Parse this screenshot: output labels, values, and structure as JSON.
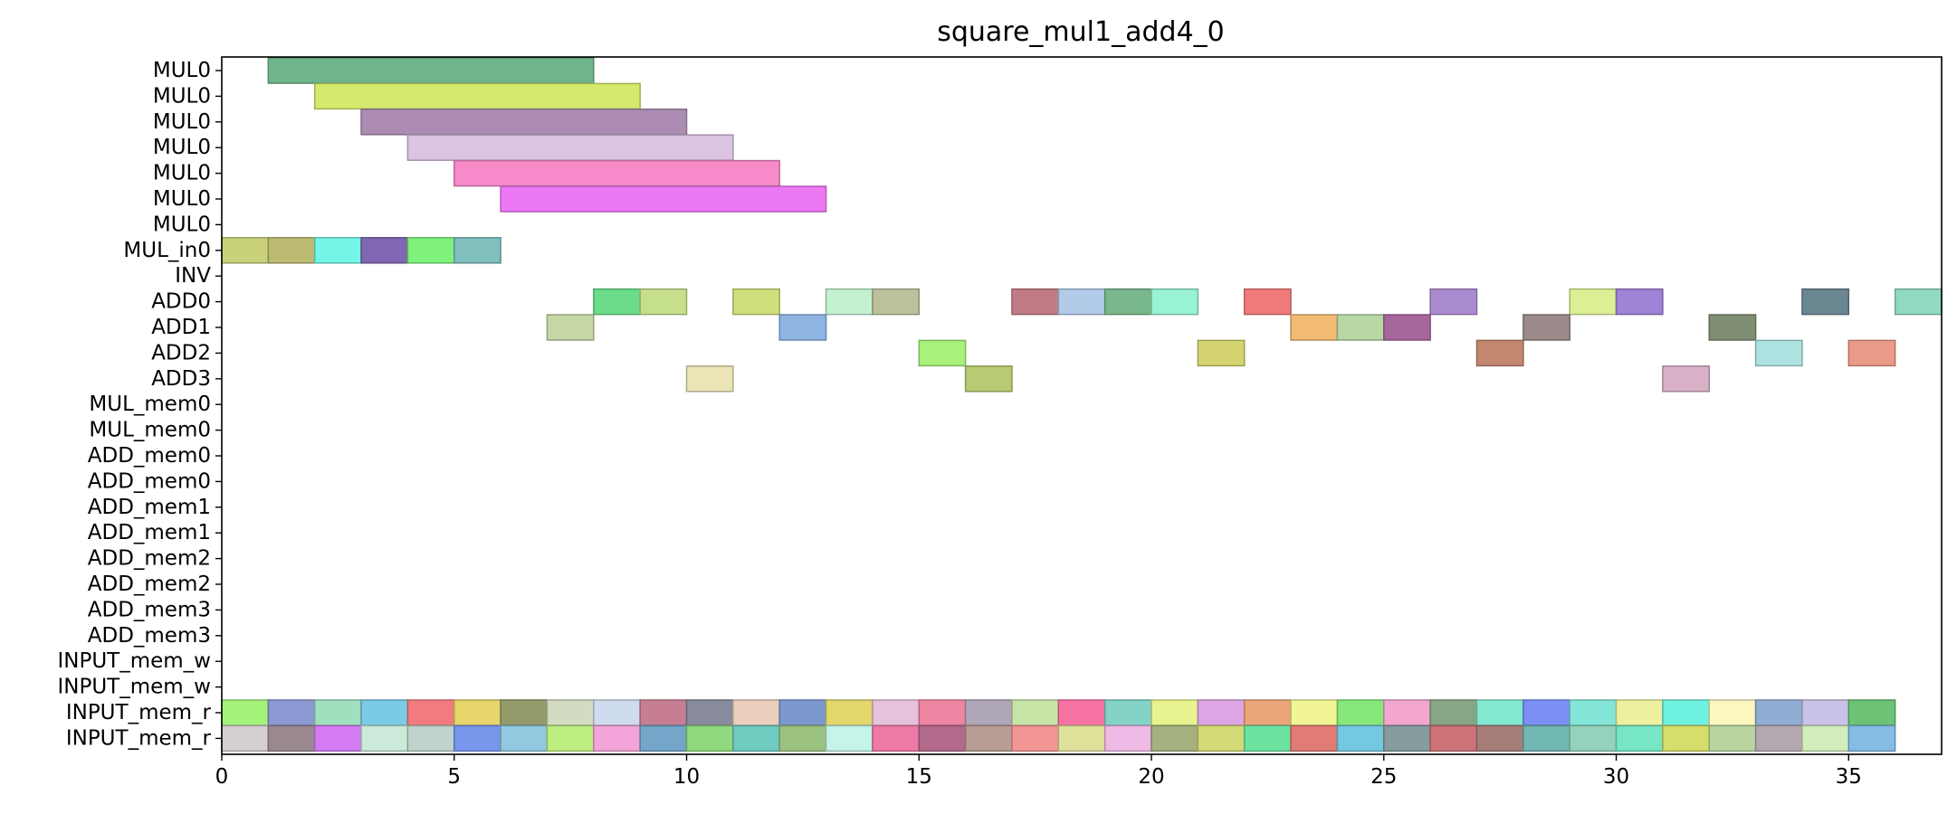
{
  "chart_data": {
    "type": "gantt",
    "title": "square_mul1_add4_0",
    "xlabel": "",
    "ylabel": "",
    "xlim": [
      0,
      37
    ],
    "xticks": [
      0,
      5,
      10,
      15,
      20,
      25,
      30,
      35
    ],
    "rows": [
      "MUL0",
      "MUL0",
      "MUL0",
      "MUL0",
      "MUL0",
      "MUL0",
      "MUL0",
      "MUL_in0",
      "INV",
      "ADD0",
      "ADD1",
      "ADD2",
      "ADD3",
      "MUL_mem0",
      "MUL_mem0",
      "ADD_mem0",
      "ADD_mem0",
      "ADD_mem1",
      "ADD_mem1",
      "ADD_mem2",
      "ADD_mem2",
      "ADD_mem3",
      "ADD_mem3",
      "INPUT_mem_w",
      "INPUT_mem_w",
      "INPUT_mem_r",
      "INPUT_mem_r"
    ],
    "tasks": [
      {
        "row": 0,
        "start": 1,
        "end": 8,
        "color": "#6fb58b"
      },
      {
        "row": 1,
        "start": 2,
        "end": 9,
        "color": "#d3ea6c"
      },
      {
        "row": 2,
        "start": 3,
        "end": 10,
        "color": "#ad8cb3"
      },
      {
        "row": 3,
        "start": 4,
        "end": 11,
        "color": "#dbc3e3"
      },
      {
        "row": 4,
        "start": 5,
        "end": 12,
        "color": "#f78ac8"
      },
      {
        "row": 5,
        "start": 6,
        "end": 13,
        "color": "#ed78f5"
      },
      {
        "row": 7,
        "start": 0,
        "end": 1,
        "color": "#c9d27a"
      },
      {
        "row": 7,
        "start": 1,
        "end": 2,
        "color": "#bcbb73"
      },
      {
        "row": 7,
        "start": 2,
        "end": 3,
        "color": "#74f5e6"
      },
      {
        "row": 7,
        "start": 3,
        "end": 4,
        "color": "#8067b2"
      },
      {
        "row": 7,
        "start": 4,
        "end": 5,
        "color": "#7ef27a"
      },
      {
        "row": 7,
        "start": 5,
        "end": 6,
        "color": "#7fbfbd"
      },
      {
        "row": 9,
        "start": 8,
        "end": 9,
        "color": "#6adc8a"
      },
      {
        "row": 9,
        "start": 9,
        "end": 10,
        "color": "#c6df8b"
      },
      {
        "row": 9,
        "start": 11,
        "end": 12,
        "color": "#cfdf7b"
      },
      {
        "row": 9,
        "start": 13,
        "end": 14,
        "color": "#c3f2d1"
      },
      {
        "row": 9,
        "start": 14,
        "end": 15,
        "color": "#bcc09c"
      },
      {
        "row": 9,
        "start": 17,
        "end": 18,
        "color": "#c17b84"
      },
      {
        "row": 9,
        "start": 18,
        "end": 19,
        "color": "#b1cbe9"
      },
      {
        "row": 9,
        "start": 19,
        "end": 20,
        "color": "#79b78c"
      },
      {
        "row": 9,
        "start": 20,
        "end": 21,
        "color": "#98f2d3"
      },
      {
        "row": 9,
        "start": 22,
        "end": 23,
        "color": "#f07b7b"
      },
      {
        "row": 9,
        "start": 26,
        "end": 27,
        "color": "#ab8bcf"
      },
      {
        "row": 9,
        "start": 29,
        "end": 30,
        "color": "#dbef95"
      },
      {
        "row": 9,
        "start": 30,
        "end": 31,
        "color": "#9e83d7"
      },
      {
        "row": 9,
        "start": 34,
        "end": 35,
        "color": "#6a8690"
      },
      {
        "row": 9,
        "start": 36,
        "end": 37,
        "color": "#91d9c2"
      },
      {
        "row": 10,
        "start": 7,
        "end": 8,
        "color": "#c5d7a5"
      },
      {
        "row": 10,
        "start": 12,
        "end": 13,
        "color": "#8db4e2"
      },
      {
        "row": 10,
        "start": 23,
        "end": 24,
        "color": "#f2bb73"
      },
      {
        "row": 10,
        "start": 24,
        "end": 25,
        "color": "#b7d8a3"
      },
      {
        "row": 10,
        "start": 25,
        "end": 26,
        "color": "#a8679b"
      },
      {
        "row": 10,
        "start": 28,
        "end": 29,
        "color": "#9c8a8a"
      },
      {
        "row": 10,
        "start": 32,
        "end": 33,
        "color": "#7f8d73"
      },
      {
        "row": 11,
        "start": 15,
        "end": 16,
        "color": "#a8f27a"
      },
      {
        "row": 11,
        "start": 21,
        "end": 22,
        "color": "#d4d470"
      },
      {
        "row": 11,
        "start": 27,
        "end": 28,
        "color": "#c4876f"
      },
      {
        "row": 11,
        "start": 33,
        "end": 34,
        "color": "#aee2e0"
      },
      {
        "row": 11,
        "start": 35,
        "end": 36,
        "color": "#e99b88"
      },
      {
        "row": 12,
        "start": 10,
        "end": 11,
        "color": "#ebe4b6"
      },
      {
        "row": 12,
        "start": 16,
        "end": 17,
        "color": "#b7cb72"
      },
      {
        "row": 12,
        "start": 31,
        "end": 32,
        "color": "#d8b1c6"
      },
      {
        "row": 25,
        "start": 0,
        "end": 1,
        "color": "#a5f27a"
      },
      {
        "row": 25,
        "start": 1,
        "end": 2,
        "color": "#8c9ad4"
      },
      {
        "row": 25,
        "start": 2,
        "end": 3,
        "color": "#a0e0bf"
      },
      {
        "row": 25,
        "start": 3,
        "end": 4,
        "color": "#7ccbe6"
      },
      {
        "row": 25,
        "start": 4,
        "end": 5,
        "color": "#f27b7f"
      },
      {
        "row": 25,
        "start": 5,
        "end": 6,
        "color": "#e8d56c"
      },
      {
        "row": 25,
        "start": 6,
        "end": 7,
        "color": "#949b6b"
      },
      {
        "row": 25,
        "start": 7,
        "end": 8,
        "color": "#d3dcc2"
      },
      {
        "row": 25,
        "start": 8,
        "end": 9,
        "color": "#cfdcef"
      },
      {
        "row": 25,
        "start": 9,
        "end": 10,
        "color": "#c77e93"
      },
      {
        "row": 25,
        "start": 10,
        "end": 11,
        "color": "#888b9c"
      },
      {
        "row": 25,
        "start": 11,
        "end": 12,
        "color": "#eccebd"
      },
      {
        "row": 25,
        "start": 12,
        "end": 13,
        "color": "#7b99cf"
      },
      {
        "row": 25,
        "start": 13,
        "end": 14,
        "color": "#e2d86c"
      },
      {
        "row": 25,
        "start": 14,
        "end": 15,
        "color": "#e7c2dd"
      },
      {
        "row": 25,
        "start": 15,
        "end": 16,
        "color": "#ed85a3"
      },
      {
        "row": 25,
        "start": 16,
        "end": 17,
        "color": "#afa7b7"
      },
      {
        "row": 25,
        "start": 17,
        "end": 18,
        "color": "#c7e5a7"
      },
      {
        "row": 25,
        "start": 18,
        "end": 19,
        "color": "#f773a4"
      },
      {
        "row": 25,
        "start": 19,
        "end": 20,
        "color": "#83d3c6"
      },
      {
        "row": 25,
        "start": 20,
        "end": 21,
        "color": "#e8f38f"
      },
      {
        "row": 25,
        "start": 21,
        "end": 22,
        "color": "#dda5e3"
      },
      {
        "row": 25,
        "start": 22,
        "end": 23,
        "color": "#eca579"
      },
      {
        "row": 25,
        "start": 23,
        "end": 24,
        "color": "#f1f595"
      },
      {
        "row": 25,
        "start": 24,
        "end": 25,
        "color": "#87e87a"
      },
      {
        "row": 25,
        "start": 25,
        "end": 26,
        "color": "#f3a7cf"
      },
      {
        "row": 25,
        "start": 26,
        "end": 27,
        "color": "#87a683"
      },
      {
        "row": 25,
        "start": 27,
        "end": 28,
        "color": "#83ead1"
      },
      {
        "row": 25,
        "start": 28,
        "end": 29,
        "color": "#7a90f4"
      },
      {
        "row": 25,
        "start": 29,
        "end": 30,
        "color": "#84e6d9"
      },
      {
        "row": 25,
        "start": 30,
        "end": 31,
        "color": "#edf1a0"
      },
      {
        "row": 25,
        "start": 31,
        "end": 32,
        "color": "#6ff2e0"
      },
      {
        "row": 25,
        "start": 32,
        "end": 33,
        "color": "#fbf7bf"
      },
      {
        "row": 25,
        "start": 33,
        "end": 34,
        "color": "#90add4"
      },
      {
        "row": 25,
        "start": 34,
        "end": 35,
        "color": "#cbc3e7"
      },
      {
        "row": 25,
        "start": 35,
        "end": 36,
        "color": "#6dc276"
      },
      {
        "row": 26,
        "start": 0,
        "end": 1,
        "color": "#d5cfd2"
      },
      {
        "row": 26,
        "start": 1,
        "end": 2,
        "color": "#9b8992"
      },
      {
        "row": 26,
        "start": 2,
        "end": 3,
        "color": "#d57cf5"
      },
      {
        "row": 26,
        "start": 3,
        "end": 4,
        "color": "#cbeada"
      },
      {
        "row": 26,
        "start": 4,
        "end": 5,
        "color": "#bfd2cc"
      },
      {
        "row": 26,
        "start": 5,
        "end": 6,
        "color": "#7896eb"
      },
      {
        "row": 26,
        "start": 6,
        "end": 7,
        "color": "#92c9e1"
      },
      {
        "row": 26,
        "start": 7,
        "end": 8,
        "color": "#bdee7f"
      },
      {
        "row": 26,
        "start": 8,
        "end": 9,
        "color": "#f3a4d8"
      },
      {
        "row": 26,
        "start": 9,
        "end": 10,
        "color": "#73a6c9"
      },
      {
        "row": 26,
        "start": 10,
        "end": 11,
        "color": "#8fd97e"
      },
      {
        "row": 26,
        "start": 11,
        "end": 12,
        "color": "#6fcbc0"
      },
      {
        "row": 26,
        "start": 12,
        "end": 13,
        "color": "#9cc282"
      },
      {
        "row": 26,
        "start": 13,
        "end": 14,
        "color": "#c5f4ea"
      },
      {
        "row": 26,
        "start": 14,
        "end": 15,
        "color": "#ef7aa8"
      },
      {
        "row": 26,
        "start": 15,
        "end": 16,
        "color": "#b46b8b"
      },
      {
        "row": 26,
        "start": 16,
        "end": 17,
        "color": "#b89d95"
      },
      {
        "row": 26,
        "start": 17,
        "end": 18,
        "color": "#f49595"
      },
      {
        "row": 26,
        "start": 18,
        "end": 19,
        "color": "#e0e29c"
      },
      {
        "row": 26,
        "start": 19,
        "end": 20,
        "color": "#efbae6"
      },
      {
        "row": 26,
        "start": 20,
        "end": 21,
        "color": "#a5b27f"
      },
      {
        "row": 26,
        "start": 21,
        "end": 22,
        "color": "#d3db76"
      },
      {
        "row": 26,
        "start": 22,
        "end": 23,
        "color": "#6ee3a0"
      },
      {
        "row": 26,
        "start": 23,
        "end": 24,
        "color": "#e27b76"
      },
      {
        "row": 26,
        "start": 24,
        "end": 25,
        "color": "#74c9e0"
      },
      {
        "row": 26,
        "start": 25,
        "end": 26,
        "color": "#869c9e"
      },
      {
        "row": 26,
        "start": 26,
        "end": 27,
        "color": "#cd7378"
      },
      {
        "row": 26,
        "start": 27,
        "end": 28,
        "color": "#a57e7a"
      },
      {
        "row": 26,
        "start": 28,
        "end": 29,
        "color": "#71b8b4"
      },
      {
        "row": 26,
        "start": 29,
        "end": 30,
        "color": "#93d3bc"
      },
      {
        "row": 26,
        "start": 30,
        "end": 31,
        "color": "#76e6c4"
      },
      {
        "row": 26,
        "start": 31,
        "end": 32,
        "color": "#d5de69"
      },
      {
        "row": 26,
        "start": 32,
        "end": 33,
        "color": "#b9d6a0"
      },
      {
        "row": 26,
        "start": 33,
        "end": 34,
        "color": "#b3a8b0"
      },
      {
        "row": 26,
        "start": 34,
        "end": 35,
        "color": "#d0edbb"
      },
      {
        "row": 26,
        "start": 35,
        "end": 36,
        "color": "#85bce6"
      }
    ]
  }
}
